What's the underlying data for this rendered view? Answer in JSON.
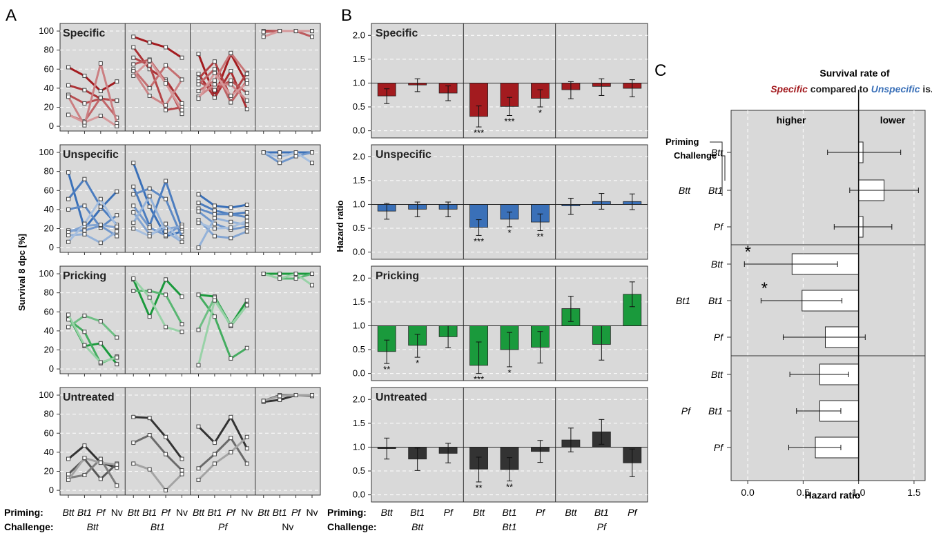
{
  "panel_letters": {
    "a": "A",
    "b": "B",
    "c": "C"
  },
  "axis_labels": {
    "a_ylabel": "Survival 8 dpc [%]",
    "b_ylabel": "Hazard ratio",
    "c_xlabel": "Hazard ratio"
  },
  "bottom_labels": {
    "priming_label": "Priming:",
    "challenge_label": "Challenge:",
    "a_priming": [
      "Btt",
      "Bt1",
      "Pf",
      "Nv"
    ],
    "a_challenge": [
      "Btt",
      "Bt1",
      "Pf",
      "Nv"
    ],
    "b_priming": [
      "Btt",
      "Bt1",
      "Pf"
    ],
    "b_challenge": [
      "Btt",
      "Bt1",
      "Pf"
    ]
  },
  "panel_c_header": {
    "line1": "Survival rate of",
    "specific_word": "Specific",
    "compared": " compared to ",
    "unspecific_word": "Unspecific",
    "tail": " is...",
    "higher": "higher",
    "lower": "lower",
    "priming": "Priming",
    "challenge": "Challenge"
  },
  "colors": {
    "specific": "#a31b1f",
    "unspecific": "#3a70b8",
    "pricking": "#1a9a3c",
    "untreated": "#333333",
    "panel_bg": "#d9d9d9",
    "unspecific_text": "#3a70b8"
  },
  "chart_data": [
    {
      "id": "A",
      "type": "line",
      "ylabel": "Survival 8 dpc [%]",
      "ylim": [
        -5,
        108
      ],
      "yticks": [
        0,
        20,
        40,
        60,
        80,
        100
      ],
      "grid": "dashed horizontal",
      "groups": [
        "Btt",
        "Bt1",
        "Pf",
        "Nv"
      ],
      "x_within_group": [
        "Btt",
        "Bt1",
        "Pf",
        "Nv"
      ],
      "rows": [
        {
          "name": "Specific",
          "color": "#a31b1f",
          "groups": [
            [
              [
                62,
                53,
                37,
                47
              ],
              [
                43,
                38,
                29,
                27
              ],
              [
                33,
                24,
                29,
                27
              ],
              [
                12,
                5,
                30,
                9
              ],
              [
                31,
                1,
                66,
                3
              ],
              [
                12,
                4,
                11,
                0
              ]
            ],
            [
              [
                94,
                88,
                83,
                72
              ],
              [
                83,
                60,
                49,
                24
              ],
              [
                72,
                64,
                17,
                20
              ],
              [
                65,
                70,
                47,
                13
              ],
              [
                60,
                40,
                64,
                49
              ],
              [
                58,
                32,
                22,
                49
              ],
              [
                53,
                69,
                45,
                17
              ]
            ],
            [
              [
                76,
                32,
                76,
                45
              ],
              [
                55,
                30,
                58,
                18
              ],
              [
                50,
                68,
                30,
                56
              ],
              [
                47,
                38,
                48,
                35
              ],
              [
                44,
                60,
                25,
                48
              ],
              [
                37,
                48,
                77,
                55
              ],
              [
                31,
                44,
                44,
                27
              ],
              [
                29,
                56,
                32,
                45
              ]
            ],
            [
              [
                100,
                100,
                100,
                100
              ],
              [
                99,
                100,
                100,
                94
              ],
              [
                94,
                100,
                100,
                100
              ]
            ]
          ]
        },
        {
          "name": "Unspecific",
          "color": "#3a70b8",
          "groups": [
            [
              [
                79,
                20,
                41,
                59
              ],
              [
                51,
                72,
                43,
                24
              ],
              [
                40,
                44,
                21,
                34
              ],
              [
                18,
                18,
                23,
                12
              ],
              [
                16,
                23,
                24,
                21
              ],
              [
                13,
                14,
                5,
                17
              ],
              [
                6,
                25,
                51,
                22
              ]
            ],
            [
              [
                89,
                43,
                12,
                17
              ],
              [
                64,
                23,
                70,
                20
              ],
              [
                56,
                62,
                51,
                11
              ],
              [
                44,
                21,
                13,
                24
              ],
              [
                37,
                14,
                20,
                22
              ],
              [
                26,
                54,
                17,
                6
              ],
              [
                20,
                12,
                25,
                6
              ]
            ],
            [
              [
                56,
                44,
                42,
                45
              ],
              [
                47,
                39,
                35,
                37
              ],
              [
                41,
                35,
                35,
                32
              ],
              [
                38,
                25,
                19,
                22
              ],
              [
                29,
                12,
                10,
                17
              ],
              [
                0,
                31,
                27,
                24
              ],
              [
                26,
                20,
                21,
                28
              ]
            ],
            [
              [
                100,
                100,
                100,
                100
              ],
              [
                100,
                89,
                96,
                100
              ],
              [
                100,
                95,
                100,
                89
              ]
            ]
          ]
        },
        {
          "name": "Pricking",
          "color": "#1a9a3c",
          "groups": [
            [
              [
                56,
                24,
                27,
                5
              ],
              [
                52,
                39,
                6,
                13
              ],
              [
                44,
                56,
                50,
                33
              ],
              [
                57,
                25,
                7,
                12
              ]
            ],
            [
              [
                94,
                55,
                94,
                76
              ],
              [
                82,
                82,
                78,
                47
              ],
              [
                95,
                75,
                44,
                39
              ]
            ],
            [
              [
                78,
                76,
                46,
                72
              ],
              [
                78,
                55,
                11,
                22
              ],
              [
                41,
                75,
                45,
                67
              ],
              [
                4,
                72,
                46,
                67
              ]
            ],
            [
              [
                100,
                100,
                100,
                100
              ],
              [
                100,
                95,
                95,
                100
              ],
              [
                100,
                95,
                100,
                88
              ]
            ]
          ]
        },
        {
          "name": "Untreated",
          "color": "#333333",
          "groups": [
            [
              [
                33,
                47,
                29,
                24
              ],
              [
                17,
                33,
                12,
                28
              ],
              [
                13,
                16,
                33,
                5
              ],
              [
                11,
                34,
                29,
                27
              ]
            ],
            [
              [
                77,
                76,
                56,
                33
              ],
              [
                50,
                58,
                38,
                21
              ],
              [
                28,
                22,
                0,
                17
              ]
            ],
            [
              [
                67,
                50,
                77,
                44
              ],
              [
                23,
                38,
                55,
                28
              ],
              [
                11,
                28,
                40,
                56
              ]
            ],
            [
              [
                93,
                95,
                100,
                100
              ],
              [
                94,
                100,
                100,
                99
              ],
              [
                94,
                99,
                100,
                100
              ]
            ]
          ]
        }
      ]
    },
    {
      "id": "B",
      "type": "bar",
      "ylabel": "Hazard ratio",
      "ylim": [
        -0.15,
        2.25
      ],
      "yticks": [
        "0.0",
        "0.5",
        "1.0",
        "1.5",
        "2.0"
      ],
      "baseline": 1.0,
      "groups": [
        "Btt",
        "Bt1",
        "Pf"
      ],
      "bars_within_group": [
        "Btt",
        "Bt1",
        "Pf"
      ],
      "rows": [
        {
          "name": "Specific",
          "color": "#a31b1f",
          "values": [
            0.73,
            0.96,
            0.79,
            0.3,
            0.51,
            0.68,
            0.86,
            0.93,
            0.89
          ],
          "err_low": [
            0.57,
            0.82,
            0.63,
            0.08,
            0.32,
            0.5,
            0.67,
            0.74,
            0.71
          ],
          "err_high": [
            0.88,
            1.09,
            0.94,
            0.52,
            0.7,
            0.86,
            1.03,
            1.09,
            1.07
          ],
          "sig": [
            "",
            "",
            "",
            "***",
            "***",
            "*",
            "",
            "",
            ""
          ]
        },
        {
          "name": "Unspecific",
          "color": "#3a70b8",
          "values": [
            0.86,
            0.9,
            0.9,
            0.52,
            0.69,
            0.63,
            0.97,
            1.06,
            1.06
          ],
          "err_low": [
            0.69,
            0.74,
            0.74,
            0.35,
            0.53,
            0.45,
            0.79,
            0.9,
            0.89
          ],
          "err_high": [
            1.02,
            1.05,
            1.05,
            0.68,
            0.84,
            0.8,
            1.13,
            1.23,
            1.22
          ],
          "sig": [
            "",
            "",
            "",
            "***",
            "*",
            "**",
            "",
            "",
            ""
          ]
        },
        {
          "name": "Pricking",
          "color": "#1a9a3c",
          "values": [
            0.46,
            0.59,
            0.77,
            0.17,
            0.5,
            0.55,
            1.36,
            0.61,
            1.66
          ],
          "err_low": [
            0.21,
            0.34,
            0.54,
            0.0,
            0.14,
            0.22,
            1.09,
            0.28,
            1.4
          ],
          "err_high": [
            0.7,
            0.82,
            1.0,
            0.66,
            0.86,
            0.88,
            1.62,
            1.0,
            1.92
          ],
          "sig": [
            "**",
            "*",
            "",
            "***",
            "*",
            "",
            "",
            "",
            ""
          ]
        },
        {
          "name": "Untreated",
          "color": "#333333",
          "values": [
            0.97,
            0.75,
            0.87,
            0.54,
            0.53,
            0.91,
            1.15,
            1.32,
            0.67
          ],
          "err_low": [
            0.75,
            0.51,
            0.67,
            0.27,
            0.29,
            0.68,
            0.9,
            1.06,
            0.38
          ],
          "err_high": [
            1.19,
            0.98,
            1.08,
            0.79,
            0.78,
            1.14,
            1.4,
            1.58,
            0.96
          ],
          "sig": [
            "",
            "",
            "",
            "**",
            "**",
            "",
            "",
            "",
            ""
          ]
        }
      ]
    },
    {
      "id": "C",
      "type": "bar",
      "orientation": "horizontal",
      "xlabel": "Hazard ratio",
      "xlim": [
        -0.15,
        1.6
      ],
      "xticks": [
        "0.0",
        "0.5",
        "1.0",
        "1.5"
      ],
      "baseline": 1.0,
      "groups": [
        {
          "priming": "Btt",
          "challenge": [
            "Btt",
            "Bt1",
            "Pf"
          ],
          "values": [
            1.04,
            1.23,
            1.04
          ],
          "err_low": [
            0.72,
            0.92,
            0.78
          ],
          "err_high": [
            1.38,
            1.54,
            1.3
          ],
          "sig": [
            "",
            "",
            ""
          ]
        },
        {
          "priming": "Bt1",
          "challenge": [
            "Btt",
            "Bt1",
            "Pf"
          ],
          "values": [
            0.4,
            0.49,
            0.7
          ],
          "err_low": [
            -0.03,
            0.12,
            0.32
          ],
          "err_high": [
            0.81,
            0.85,
            1.06
          ],
          "sig": [
            "*",
            "*",
            ""
          ]
        },
        {
          "priming": "Pf",
          "challenge": [
            "Btt",
            "Bt1",
            "Pf"
          ],
          "values": [
            0.65,
            0.65,
            0.61
          ],
          "err_low": [
            0.38,
            0.44,
            0.37
          ],
          "err_high": [
            0.91,
            0.84,
            0.84
          ],
          "sig": [
            "",
            "",
            ""
          ]
        }
      ]
    }
  ]
}
